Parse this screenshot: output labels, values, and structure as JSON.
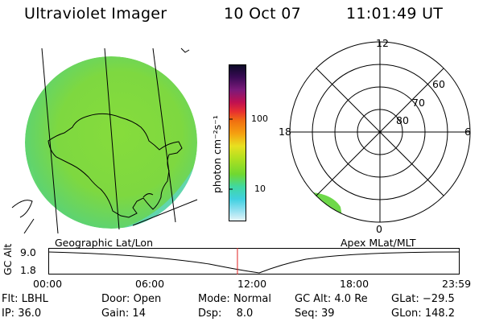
{
  "header": {
    "instrument": "Ultraviolet Imager",
    "date": "10 Oct 07",
    "time": "11:01:49 UT"
  },
  "colorbar": {
    "unit_label": "photon cm⁻²s⁻¹",
    "ticks": [
      "100",
      "10"
    ],
    "colors": [
      "#0b0b26",
      "#3a0a55",
      "#7a1a7a",
      "#c01050",
      "#e83030",
      "#f07010",
      "#f5a010",
      "#e8e020",
      "#b0e020",
      "#70d830",
      "#40d8a0",
      "#40d0e0",
      "#90e0f0",
      "#e8f4f8"
    ]
  },
  "polar_plot": {
    "mlt_labels": {
      "top": "12",
      "left": "18",
      "right": "6",
      "bottom": "0"
    },
    "lat_labels": [
      "60",
      "70",
      "80"
    ]
  },
  "timeline": {
    "left_label": "Geographic Lat/Lon",
    "right_label": "Apex MLat/MLT",
    "y_axis_label": "GC Alt",
    "y_ticks": [
      "9.0",
      "1.8"
    ],
    "x_ticks": [
      "00:00",
      "06:00",
      "12:00",
      "18:00",
      "23:59"
    ],
    "current_time_fraction": 0.4597
  },
  "status": {
    "flt_label": "Flt:",
    "flt_value": "LBHL",
    "ip_label": "IP:",
    "ip_value": "36.0",
    "door_label": "Door:",
    "door_value": "Open",
    "gain_label": "Gain:",
    "gain_value": "14",
    "mode_label": "Mode:",
    "mode_value": "Normal",
    "dsp_label": "Dsp:",
    "dsp_value": "8.0",
    "gcalt_label": "GC Alt:",
    "gcalt_value": "4.0 Re",
    "seq_label": "Seq:",
    "seq_value": "39",
    "glat_label": "GLat:",
    "glat_value": "−29.5",
    "glon_label": "GLon:",
    "glon_value": "148.2"
  }
}
